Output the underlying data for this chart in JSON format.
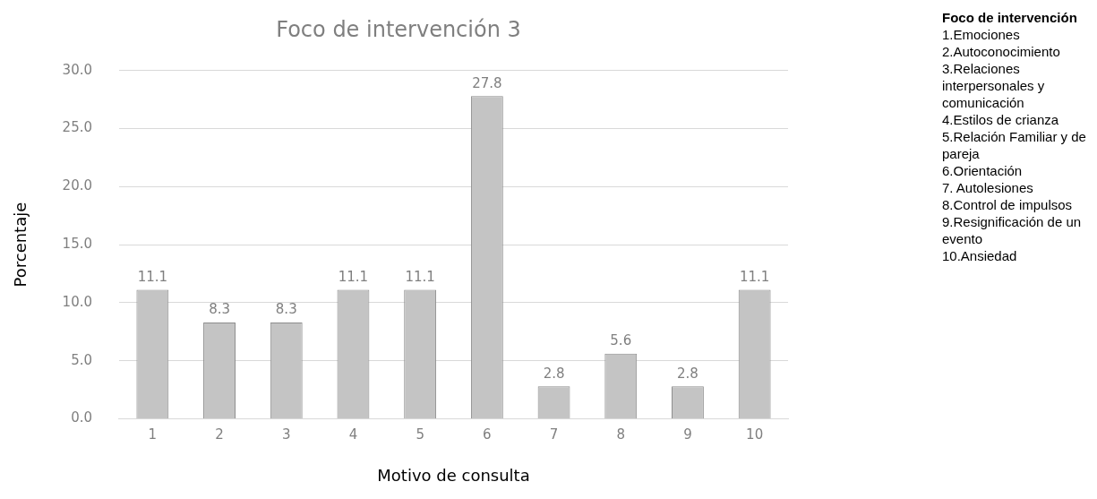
{
  "chart_data": {
    "type": "bar",
    "title": "Foco de intervención 3",
    "xlabel": "Motivo de consulta",
    "ylabel": "Porcentaje",
    "categories": [
      "1",
      "2",
      "3",
      "4",
      "5",
      "6",
      "7",
      "8",
      "9",
      "10"
    ],
    "values": [
      11.1,
      8.3,
      8.3,
      11.1,
      11.1,
      27.8,
      2.8,
      5.6,
      2.8,
      11.1
    ],
    "color": "#c4c4c4",
    "ylim": [
      0,
      30
    ],
    "yticks": [
      {
        "value": 0,
        "label": "0.0"
      },
      {
        "value": 5,
        "label": "5.0"
      },
      {
        "value": 10,
        "label": "10.0"
      },
      {
        "value": 15,
        "label": "15.0"
      },
      {
        "value": 20,
        "label": "20.0"
      },
      {
        "value": 25,
        "label": "25.0"
      },
      {
        "value": 30,
        "label": "30.0"
      }
    ],
    "grid": "y",
    "legend": false,
    "data_labels": true,
    "annotations": [
      "Foco de intervención",
      "1.Emociones",
      "2.Autoconocimiento",
      "3.Relaciones interpersonales y comunicación",
      "4.Estilos de crianza",
      "5.Relación Familiar y de pareja",
      "6.Orientación",
      "7. Autolesiones",
      "8.Control de impulsos",
      "9.Resignificación de un evento",
      "10.Ansiedad"
    ]
  }
}
